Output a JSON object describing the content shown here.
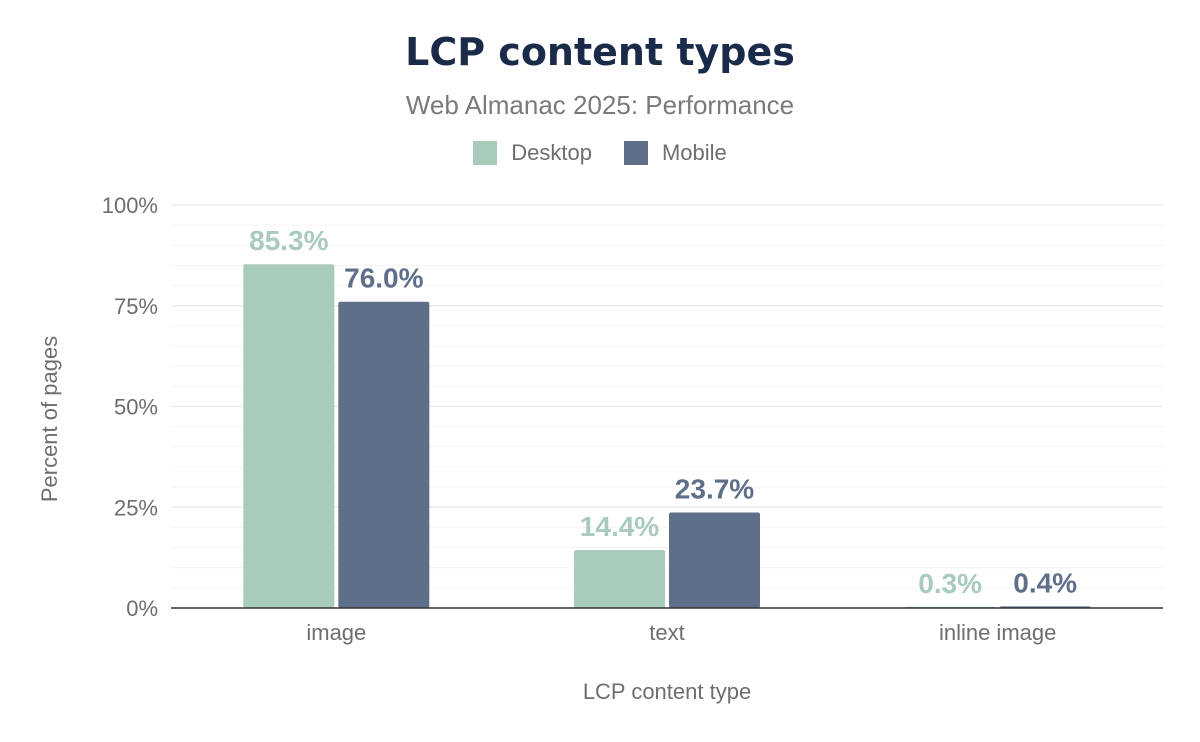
{
  "chart_data": {
    "type": "bar",
    "title": "LCP content types",
    "subtitle": "Web Almanac 2025: Performance",
    "xlabel": "LCP content type",
    "ylabel": "Percent of pages",
    "categories": [
      "image",
      "text",
      "inline image"
    ],
    "series": [
      {
        "name": "Desktop",
        "color": "#a8cbbb",
        "values": [
          85.3,
          14.4,
          0.3
        ],
        "labels": [
          "85.3%",
          "14.4%",
          "0.3%"
        ]
      },
      {
        "name": "Mobile",
        "color": "#5f6f8a",
        "values": [
          76.0,
          23.7,
          0.4
        ],
        "labels": [
          "76.0%",
          "23.7%",
          "0.4%"
        ]
      }
    ],
    "ylim": [
      0,
      100
    ],
    "yticks": [
      {
        "value": 0,
        "label": "0%"
      },
      {
        "value": 25,
        "label": "25%"
      },
      {
        "value": 50,
        "label": "50%"
      },
      {
        "value": 75,
        "label": "75%"
      },
      {
        "value": 100,
        "label": "100%"
      }
    ],
    "grid": true,
    "legend_position": "top-center"
  }
}
